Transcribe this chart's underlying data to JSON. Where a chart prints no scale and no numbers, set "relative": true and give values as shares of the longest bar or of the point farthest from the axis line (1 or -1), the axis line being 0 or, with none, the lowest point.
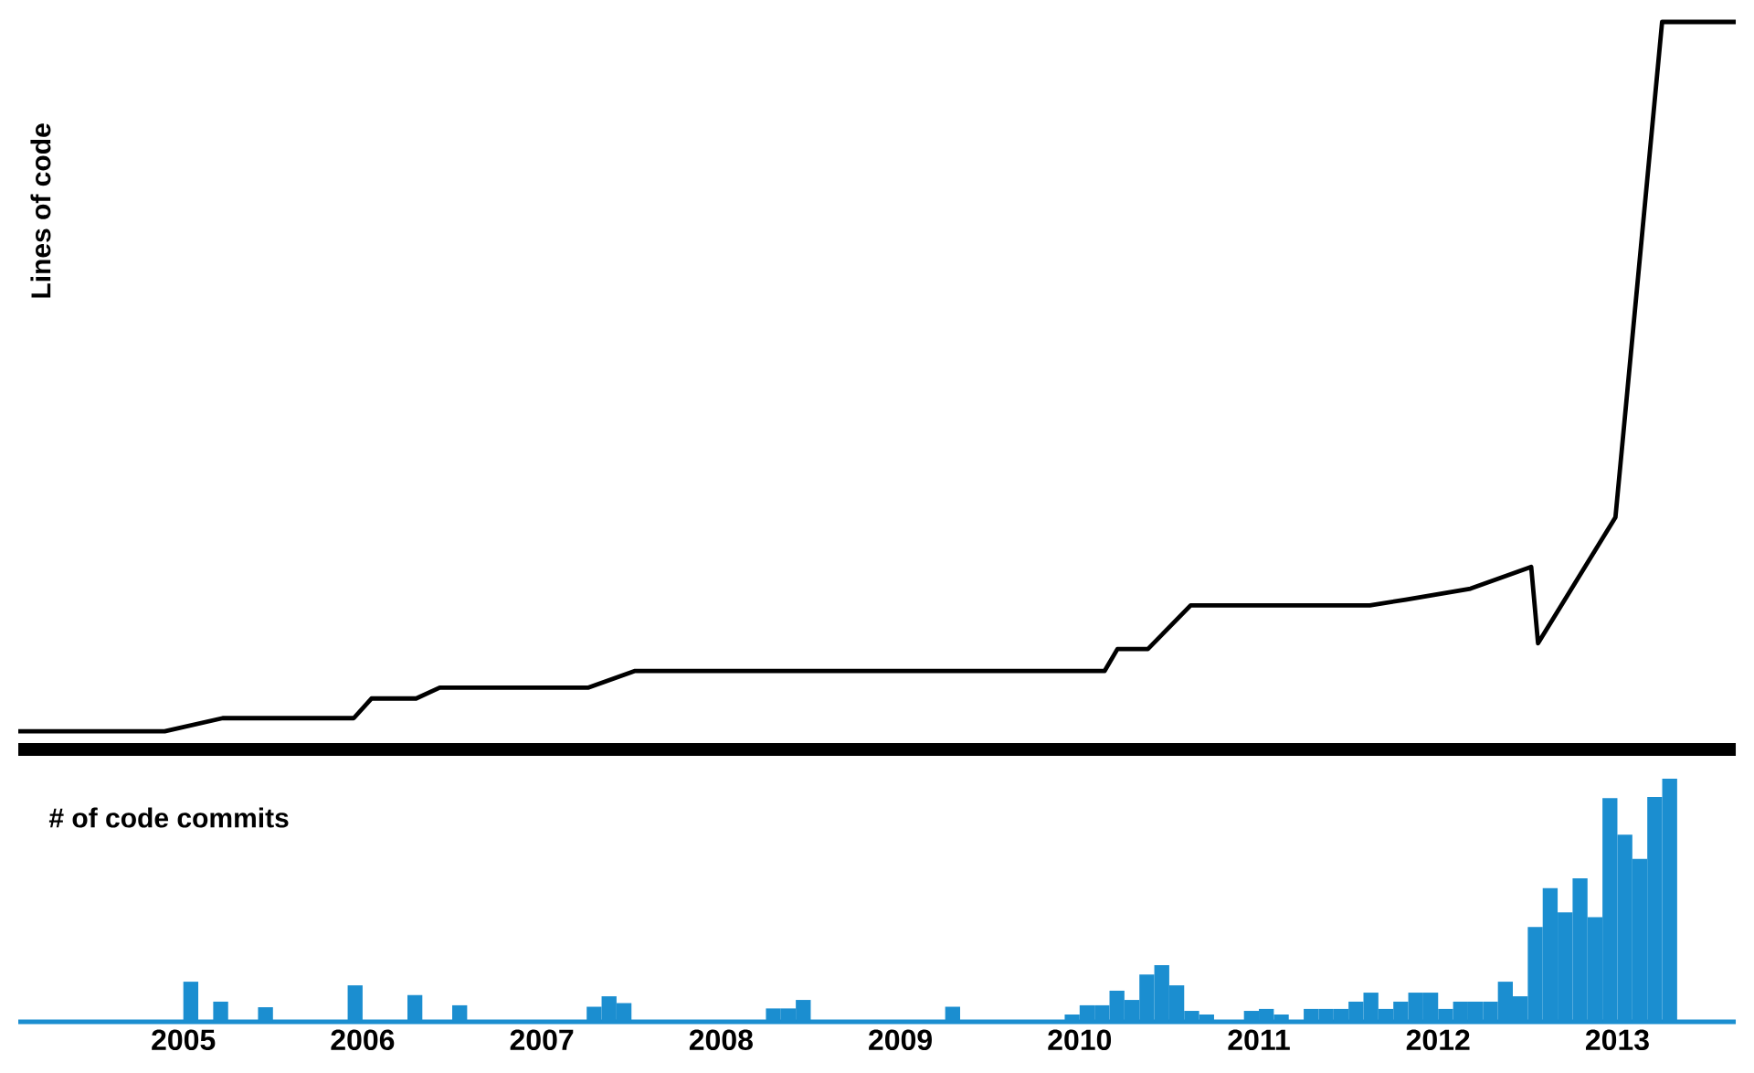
{
  "chart_data": [
    {
      "type": "line",
      "ylabel": "Lines of code",
      "relative": true,
      "color": "#000000",
      "xlim": [
        "2004-01-30",
        "2013-08-30"
      ],
      "xticks": [
        "2005",
        "2006",
        "2007",
        "2008",
        "2009",
        "2010",
        "2011",
        "2012",
        "2013"
      ],
      "tick_labels": false,
      "x": [
        "2004-01-30",
        "2004-11-24",
        "2005-03-22",
        "2005-12-14",
        "2006-01-19",
        "2006-04-20",
        "2006-06-07",
        "2007-04-06",
        "2007-07-10",
        "2010-02-21",
        "2010-03-19",
        "2010-05-20",
        "2010-08-15",
        "2011-08-15",
        "2011-10-27",
        "2012-03-07",
        "2012-07-09",
        "2012-07-23",
        "2012-12-28",
        "2013-04-02",
        "2013-08-30"
      ],
      "values": [
        0.025,
        0.025,
        0.043,
        0.043,
        0.07,
        0.07,
        0.085,
        0.085,
        0.108,
        0.108,
        0.138,
        0.138,
        0.198,
        0.198,
        0.206,
        0.221,
        0.251,
        0.146,
        0.319,
        1,
        1
      ]
    },
    {
      "type": "bar",
      "title": "# of code commits",
      "relative": true,
      "color": "#1b8ed0",
      "xlim": [
        "2004-01-30",
        "2013-08-30"
      ],
      "xticks": [
        "2005",
        "2006",
        "2007",
        "2008",
        "2009",
        "2010",
        "2011",
        "2012",
        "2013"
      ],
      "x": [
        "2005-01",
        "2005-03",
        "2005-06",
        "2005-12",
        "2006-04",
        "2006-07",
        "2007-04",
        "2007-05",
        "2007-06",
        "2008-04",
        "2008-05",
        "2008-06",
        "2009-04",
        "2009-12",
        "2010-01",
        "2010-02",
        "2010-03",
        "2010-04",
        "2010-05",
        "2010-06",
        "2010-07",
        "2010-08",
        "2010-09",
        "2010-12",
        "2011-01",
        "2011-02",
        "2011-04",
        "2011-05",
        "2011-06",
        "2011-07",
        "2011-08",
        "2011-09",
        "2011-10",
        "2011-11",
        "2011-12",
        "2012-01",
        "2012-02",
        "2012-03",
        "2012-04",
        "2012-05",
        "2012-06",
        "2012-07",
        "2012-08",
        "2012-09",
        "2012-10",
        "2012-11",
        "2012-12",
        "2013-01",
        "2013-02",
        "2013-03",
        "2013-04"
      ],
      "values": [
        0.165,
        0.083,
        0.06,
        0.15,
        0.11,
        0.068,
        0.062,
        0.105,
        0.077,
        0.055,
        0.055,
        0.09,
        0.062,
        0.03,
        0.068,
        0.068,
        0.128,
        0.09,
        0.195,
        0.233,
        0.15,
        0.045,
        0.03,
        0.045,
        0.053,
        0.03,
        0.053,
        0.053,
        0.053,
        0.083,
        0.12,
        0.053,
        0.083,
        0.12,
        0.12,
        0.053,
        0.083,
        0.083,
        0.083,
        0.165,
        0.105,
        0.39,
        0.55,
        0.45,
        0.59,
        0.43,
        0.92,
        0.77,
        0.67,
        0.925,
        1
      ]
    }
  ]
}
